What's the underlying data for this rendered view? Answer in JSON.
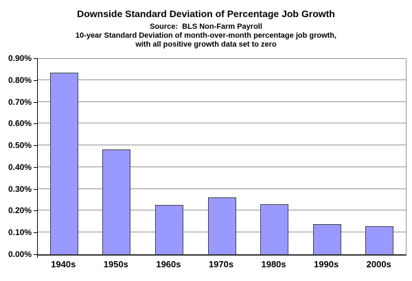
{
  "chart_data": {
    "type": "bar",
    "title": "Downside Standard Deviation of Percentage Job Growth",
    "subtitle_source": "Source:  BLS Non-Farm Payroll",
    "subtitle_desc1": "10-year Standard Deviation of month-over-month percentage job growth,",
    "subtitle_desc2": "with all positive growth data set to zero",
    "categories": [
      "1940s",
      "1950s",
      "1960s",
      "1970s",
      "1980s",
      "1990s",
      "2000s"
    ],
    "values": [
      0.835,
      0.48,
      0.227,
      0.262,
      0.231,
      0.137,
      0.13
    ],
    "unit": "%",
    "xlabel": "",
    "ylabel": "",
    "ylim": [
      0,
      0.9
    ],
    "y_tick_step": 0.1,
    "y_tick_labels": [
      "0.00%",
      "0.10%",
      "0.20%",
      "0.30%",
      "0.40%",
      "0.50%",
      "0.60%",
      "0.70%",
      "0.80%",
      "0.90%"
    ],
    "grid": true,
    "legend": "none",
    "colors": {
      "bar_fill": "#9999FF",
      "bar_border": "#444444",
      "gridline": "#909090",
      "axis": "#000000",
      "background": "#FFFFFF"
    }
  }
}
